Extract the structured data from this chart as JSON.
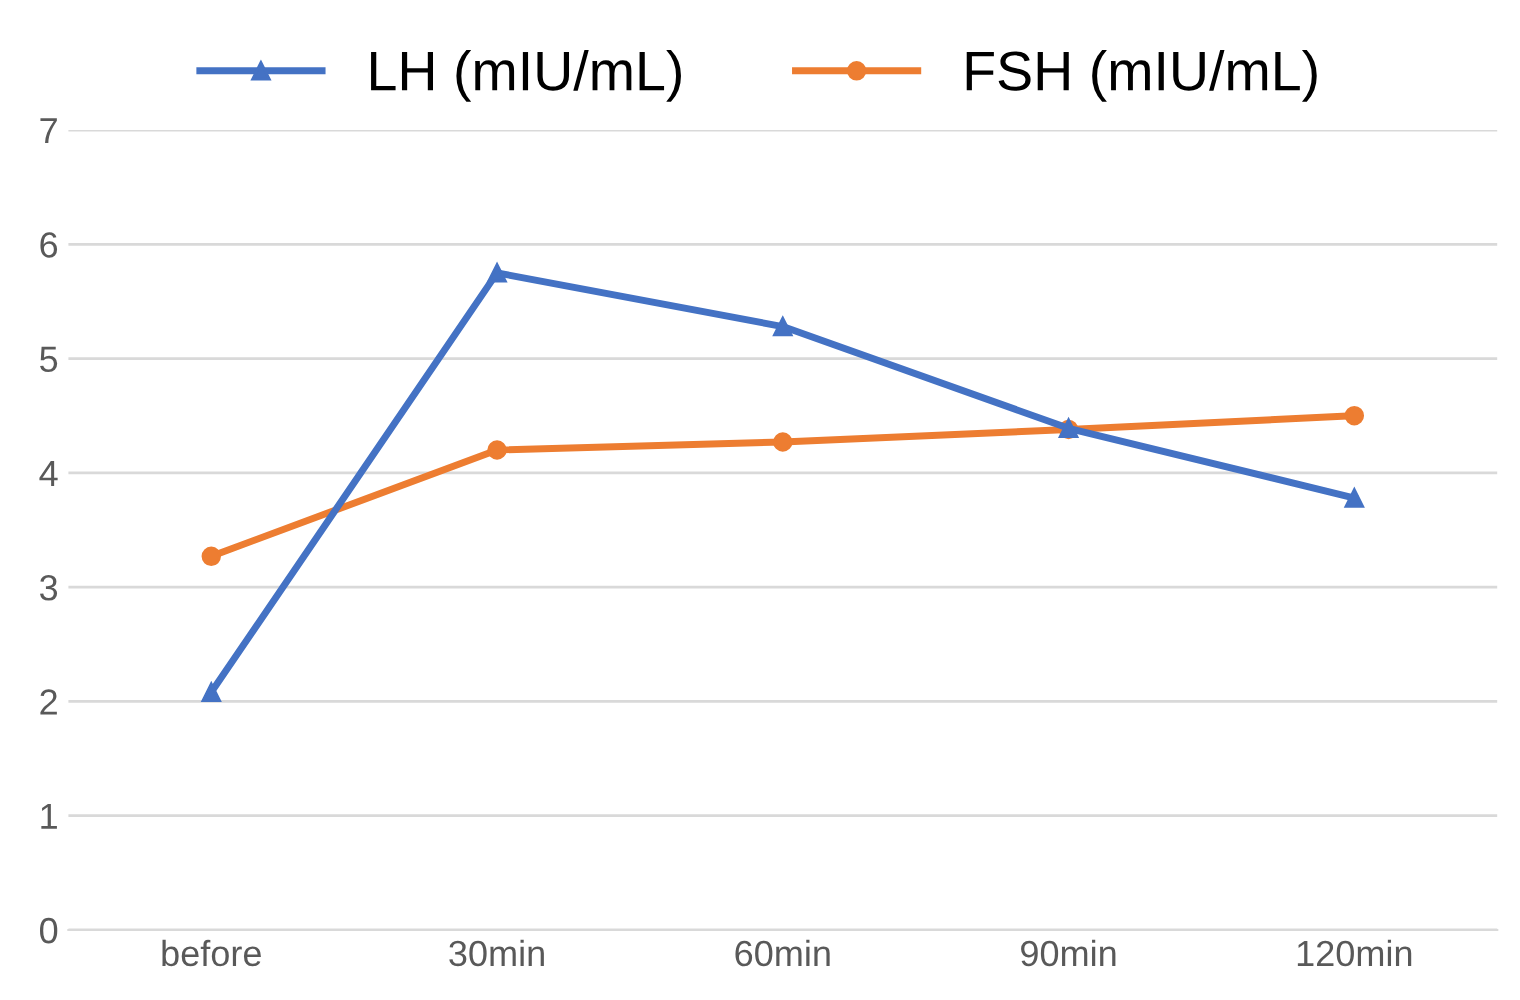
{
  "chart_data": {
    "type": "line",
    "categories": [
      "before",
      "30min",
      "60min",
      "90min",
      "120min"
    ],
    "series": [
      {
        "name": "LH (mIU/mL)",
        "color": "#4472c4",
        "marker": "triangle",
        "values": [
          2.08,
          5.75,
          5.28,
          4.39,
          3.78
        ]
      },
      {
        "name": "FSH (mIU/mL)",
        "color": "#ed7d31",
        "marker": "circle",
        "values": [
          3.27,
          4.2,
          4.27,
          4.38,
          4.5
        ]
      }
    ],
    "ylim": [
      0,
      7
    ],
    "yticks": [
      0,
      1,
      2,
      3,
      4,
      5,
      6,
      7
    ],
    "grid": "y",
    "legend": "top",
    "line_style": "solid"
  }
}
